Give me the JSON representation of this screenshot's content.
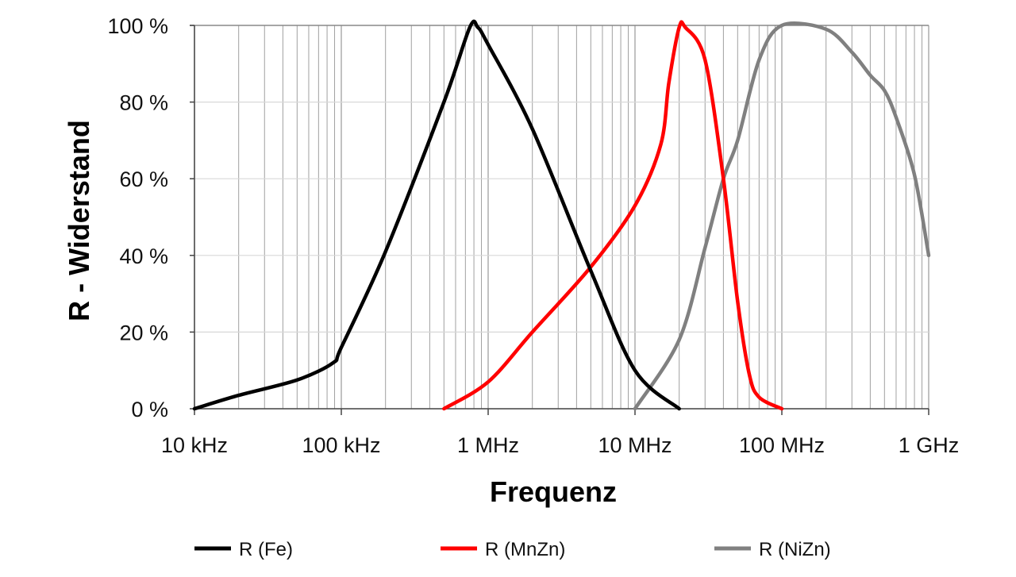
{
  "chart_data": {
    "type": "line",
    "title": "",
    "xlabel": "Frequenz",
    "ylabel": "R - Widerstand",
    "xscale": "log",
    "xlim": [
      10000,
      1000000000
    ],
    "ylim": [
      0,
      100
    ],
    "grid": true,
    "legend_placement": "bottom",
    "x_tick_values": [
      10000,
      100000,
      1000000,
      10000000,
      100000000,
      1000000000
    ],
    "x_tick_labels": [
      "10 kHz",
      "100 kHz",
      "1 MHz",
      "10 MHz",
      "100 MHz",
      "1 GHz"
    ],
    "y_tick_values": [
      0,
      20,
      40,
      60,
      80,
      100
    ],
    "y_tick_labels": [
      "0 %",
      "20 %",
      "40 %",
      "60 %",
      "80 %",
      "100 %"
    ],
    "series": [
      {
        "name": "R (Fe)",
        "color": "#000000",
        "x": [
          10000,
          20000,
          50000,
          88000,
          100000,
          200000,
          500000,
          750000,
          850000,
          1000000,
          2000000,
          5000000,
          10000000,
          20000000
        ],
        "y": [
          0,
          3.5,
          7.5,
          12,
          16,
          41,
          80,
          99.5,
          99.5,
          95,
          73,
          36,
          10,
          0
        ]
      },
      {
        "name": "R (MnZn)",
        "color": "#ff0000",
        "x": [
          500000,
          1000000,
          2000000,
          5000000,
          10000000,
          15000000,
          17000000,
          20000000,
          22000000,
          30000000,
          40000000,
          50000000,
          60000000,
          70000000,
          100000000
        ],
        "y": [
          0,
          7,
          20,
          37,
          53,
          69,
          85,
          99.5,
          99.5,
          91,
          60,
          28,
          9,
          3,
          0
        ]
      },
      {
        "name": "R (NiZn)",
        "color": "#808080",
        "x": [
          10000000,
          20000000,
          30000000,
          40000000,
          50000000,
          70000000,
          100000000,
          200000000,
          300000000,
          400000000,
          500000000,
          600000000,
          800000000,
          1000000000
        ],
        "y": [
          0,
          18,
          42,
          60,
          70,
          91,
          100,
          99,
          93,
          87,
          83,
          76,
          61,
          40
        ]
      }
    ]
  }
}
